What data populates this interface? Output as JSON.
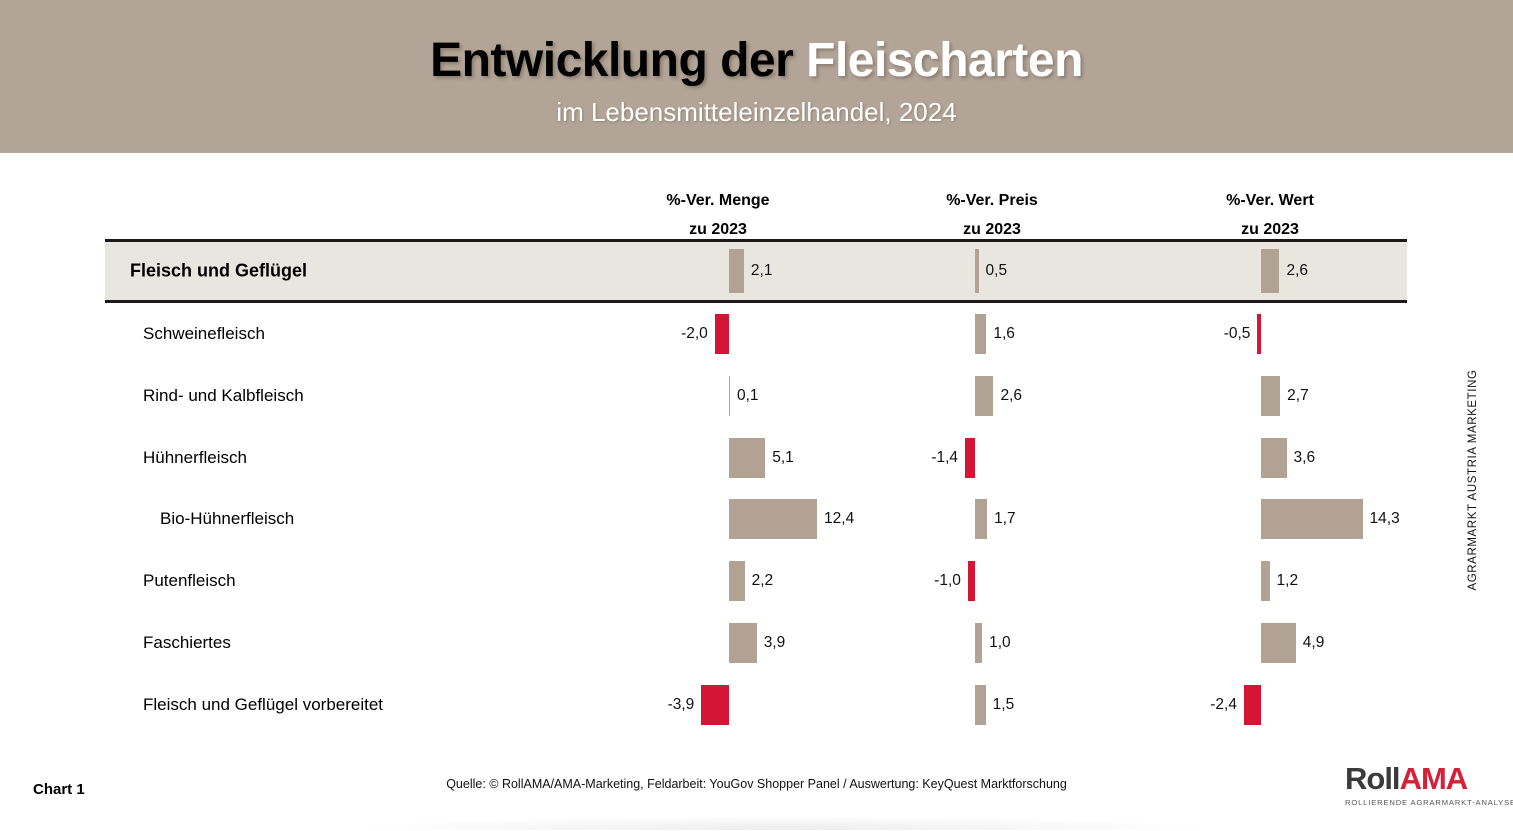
{
  "header": {
    "title_black": "Entwicklung der ",
    "title_white": "Fleischarten",
    "subtitle": "im Lebensmitteleinzelhandel, 2024",
    "background_color": "#b2a496"
  },
  "chart_data": {
    "type": "bar",
    "orientation": "horizontal",
    "title": "Entwicklung der Fleischarten im Lebensmitteleinzelhandel, 2024",
    "value_unit": "% change vs 2023",
    "value_format": "one decimal, comma as decimal separator",
    "legend": "none",
    "grid": "off",
    "positive_color": "#b1a294",
    "negative_color": "#d51535",
    "highlight_row_background": "#e9e6e0",
    "columns": [
      {
        "id": "menge",
        "label": "%-Ver. Menge",
        "sublabel": "zu 2023"
      },
      {
        "id": "preis",
        "label": "%-Ver. Preis",
        "sublabel": "zu 2023"
      },
      {
        "id": "wert",
        "label": "%-Ver. Wert",
        "sublabel": "zu 2023"
      }
    ],
    "rows": [
      {
        "label": "Fleisch und Geflügel",
        "highlight": true,
        "indent": false,
        "values": [
          2.1,
          0.5,
          2.6
        ],
        "display": [
          "2,1",
          "0,5",
          "2,6"
        ]
      },
      {
        "label": "Schweinefleisch",
        "highlight": false,
        "indent": false,
        "values": [
          -2.0,
          1.6,
          -0.5
        ],
        "display": [
          "-2,0",
          "1,6",
          "-0,5"
        ]
      },
      {
        "label": "Rind- und Kalbfleisch",
        "highlight": false,
        "indent": false,
        "values": [
          0.1,
          2.6,
          2.7
        ],
        "display": [
          "0,1",
          "2,6",
          "2,7"
        ]
      },
      {
        "label": "Hühnerfleisch",
        "highlight": false,
        "indent": false,
        "values": [
          5.1,
          -1.4,
          3.6
        ],
        "display": [
          "5,1",
          "-1,4",
          "3,6"
        ]
      },
      {
        "label": "Bio-Hühnerfleisch",
        "highlight": false,
        "indent": true,
        "values": [
          12.4,
          1.7,
          14.3
        ],
        "display": [
          "12,4",
          "1,7",
          "14,3"
        ]
      },
      {
        "label": "Putenfleisch",
        "highlight": false,
        "indent": false,
        "values": [
          2.2,
          -1.0,
          1.2
        ],
        "display": [
          "2,2",
          "-1,0",
          "1,2"
        ]
      },
      {
        "label": "Faschiertes",
        "highlight": false,
        "indent": false,
        "values": [
          3.9,
          1.0,
          4.9
        ],
        "display": [
          "3,9",
          "1,0",
          "4,9"
        ]
      },
      {
        "label": "Fleisch und Geflügel vorbereitet",
        "highlight": false,
        "indent": false,
        "values": [
          -3.9,
          1.5,
          -2.4
        ],
        "display": [
          "-3,9",
          "1,5",
          "-2,4"
        ]
      }
    ]
  },
  "side_text": "AGRARMARKT AUSTRIA MARKETING",
  "footer": {
    "chart_label": "Chart 1",
    "source": "Quelle: © RollAMA/AMA-Marketing, Feldarbeit: YouGov Shopper Panel / Auswertung: KeyQuest Marktforschung",
    "logo": {
      "part1": "Roll",
      "part2": "AMA",
      "part1_color": "#3a3a3c",
      "part2_color": "#d52038",
      "tagline": "ROLLIERENDE AGRARMARKT-ANALYSE"
    }
  }
}
